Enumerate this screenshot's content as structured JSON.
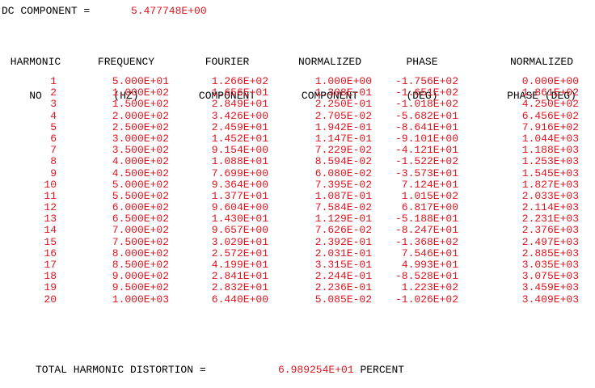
{
  "dc": {
    "label": "DC COMPONENT =",
    "value": "5.477748E+00"
  },
  "headers": {
    "no": [
      "HARMONIC",
      "NO"
    ],
    "freq": [
      "FREQUENCY",
      "(HZ)"
    ],
    "four": [
      "FOURIER",
      "COMPONENT"
    ],
    "nc": [
      "NORMALIZED",
      "COMPONENT"
    ],
    "ph": [
      "PHASE",
      "(DEG)"
    ],
    "nph": [
      "NORMALIZED",
      "PHASE (DEG)"
    ]
  },
  "rows": [
    [
      "1",
      "5.000E+01",
      "1.266E+02",
      "1.000E+00",
      "-1.756E+02",
      "0.000E+00"
    ],
    [
      "2",
      "1.000E+02",
      "1.656E+01",
      "1.308E-01",
      "-1.651E+02",
      "1.861E+02"
    ],
    [
      "3",
      "1.500E+02",
      "2.849E+01",
      "2.250E-01",
      "-1.018E+02",
      "4.250E+02"
    ],
    [
      "4",
      "2.000E+02",
      "3.426E+00",
      "2.705E-02",
      "-5.682E+01",
      "6.456E+02"
    ],
    [
      "5",
      "2.500E+02",
      "2.459E+01",
      "1.942E-01",
      "-8.641E+01",
      "7.916E+02"
    ],
    [
      "6",
      "3.000E+02",
      "1.452E+01",
      "1.147E-01",
      "-9.101E+00",
      "1.044E+03"
    ],
    [
      "7",
      "3.500E+02",
      "9.154E+00",
      "7.229E-02",
      "-4.121E+01",
      "1.188E+03"
    ],
    [
      "8",
      "4.000E+02",
      "1.088E+01",
      "8.594E-02",
      "-1.522E+02",
      "1.253E+03"
    ],
    [
      "9",
      "4.500E+02",
      "7.699E+00",
      "6.080E-02",
      "-3.573E+01",
      "1.545E+03"
    ],
    [
      "10",
      "5.000E+02",
      "9.364E+00",
      "7.395E-02",
      "7.124E+01",
      "1.827E+03"
    ],
    [
      "11",
      "5.500E+02",
      "1.377E+01",
      "1.087E-01",
      "1.015E+02",
      "2.033E+03"
    ],
    [
      "12",
      "6.000E+02",
      "9.604E+00",
      "7.584E-02",
      "6.817E+00",
      "2.114E+03"
    ],
    [
      "13",
      "6.500E+02",
      "1.430E+01",
      "1.129E-01",
      "-5.188E+01",
      "2.231E+03"
    ],
    [
      "14",
      "7.000E+02",
      "9.657E+00",
      "7.626E-02",
      "-8.247E+01",
      "2.376E+03"
    ],
    [
      "15",
      "7.500E+02",
      "3.029E+01",
      "2.392E-01",
      "-1.368E+02",
      "2.497E+03"
    ],
    [
      "16",
      "8.000E+02",
      "2.572E+01",
      "2.031E-01",
      "7.546E+01",
      "2.885E+03"
    ],
    [
      "17",
      "8.500E+02",
      "4.199E+01",
      "3.315E-01",
      "4.993E+01",
      "3.035E+03"
    ],
    [
      "18",
      "9.000E+02",
      "2.841E+01",
      "2.244E-01",
      "-8.528E+01",
      "3.075E+03"
    ],
    [
      "19",
      "9.500E+02",
      "2.832E+01",
      "2.236E-01",
      "1.223E+02",
      "3.459E+03"
    ],
    [
      "20",
      "1.000E+03",
      "6.440E+00",
      "5.085E-02",
      "-1.026E+02",
      "3.409E+03"
    ]
  ],
  "thd": {
    "label": "TOTAL HARMONIC DISTORTION =",
    "value": "6.989254E+01",
    "unit": "PERCENT"
  }
}
